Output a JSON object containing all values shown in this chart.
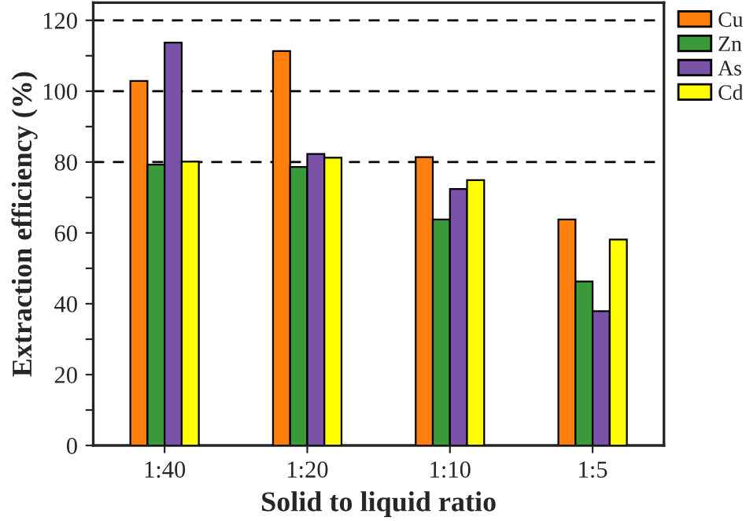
{
  "chart_data": {
    "type": "bar",
    "xlabel": "Solid to liquid ratio",
    "ylabel": "Extraction efficiency (%)",
    "categories": [
      "1:40",
      "1:20",
      "1:10",
      "1:5"
    ],
    "series": [
      {
        "name": "Cu",
        "color": "#ff7f0e",
        "values": [
          102.9,
          111.3,
          81.4,
          63.8
        ]
      },
      {
        "name": "Zn",
        "color": "#3a9a3a",
        "values": [
          79.3,
          78.6,
          63.8,
          46.3
        ]
      },
      {
        "name": "As",
        "color": "#7a52a8",
        "values": [
          113.7,
          82.3,
          72.4,
          37.9
        ]
      },
      {
        "name": "Cd",
        "color": "#ffff00",
        "values": [
          80.1,
          81.2,
          74.9,
          58.1
        ]
      }
    ],
    "ylim": [
      0,
      125
    ],
    "yticks": [
      0,
      {
        "value": 10,
        "label": null
      },
      20,
      {
        "value": 30,
        "label": null
      },
      40,
      {
        "value": 50,
        "label": null
      },
      60,
      {
        "value": 70,
        "label": null
      },
      80,
      {
        "value": 90,
        "label": null
      },
      100,
      {
        "value": 110,
        "label": null
      },
      120
    ],
    "ref_lines": [
      {
        "axis": "y",
        "value": 80,
        "color": "#000000",
        "line_style": "dashed"
      },
      {
        "axis": "y",
        "value": 100,
        "color": "#000000",
        "line_style": "dashed"
      },
      {
        "axis": "y",
        "value": 120,
        "color": "#000000",
        "line_style": "dashed"
      }
    ],
    "legend": "top right",
    "grid": false
  }
}
